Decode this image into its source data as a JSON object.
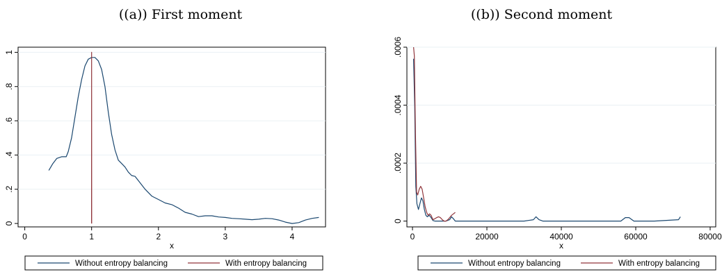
{
  "chart_data": [
    {
      "type": "line",
      "caption": "((a)) First moment",
      "xlabel": "x",
      "ylabel": "",
      "xlim": [
        -0.1,
        4.5
      ],
      "ylim": [
        -0.02,
        1.03
      ],
      "xticks": [
        0,
        1,
        2,
        3,
        4
      ],
      "xtick_labels": [
        "0",
        "1",
        "2",
        "3",
        "4"
      ],
      "yticks": [
        0,
        0.2,
        0.4,
        0.6,
        0.8,
        1
      ],
      "ytick_labels": [
        "0",
        ".2",
        ".4",
        ".6",
        ".8",
        "1"
      ],
      "grid": "horizontal",
      "legend_position": "bottom",
      "series": [
        {
          "name": "Without entropy balancing",
          "color": "#1a476f",
          "x": [
            0.36,
            0.42,
            0.48,
            0.55,
            0.62,
            0.65,
            0.7,
            0.75,
            0.8,
            0.85,
            0.9,
            0.95,
            1.0,
            1.05,
            1.1,
            1.15,
            1.2,
            1.25,
            1.3,
            1.35,
            1.4,
            1.45,
            1.5,
            1.55,
            1.6,
            1.65,
            1.7,
            1.8,
            1.9,
            2.0,
            2.1,
            2.2,
            2.3,
            2.4,
            2.5,
            2.6,
            2.7,
            2.8,
            2.9,
            3.0,
            3.1,
            3.2,
            3.3,
            3.4,
            3.5,
            3.6,
            3.7,
            3.8,
            3.9,
            4.0,
            4.1,
            4.2,
            4.3,
            4.4
          ],
          "y": [
            0.31,
            0.35,
            0.38,
            0.39,
            0.39,
            0.42,
            0.5,
            0.62,
            0.74,
            0.84,
            0.92,
            0.96,
            0.97,
            0.97,
            0.95,
            0.9,
            0.8,
            0.65,
            0.52,
            0.43,
            0.37,
            0.35,
            0.33,
            0.3,
            0.28,
            0.275,
            0.25,
            0.2,
            0.16,
            0.14,
            0.12,
            0.11,
            0.09,
            0.065,
            0.055,
            0.04,
            0.045,
            0.045,
            0.038,
            0.035,
            0.03,
            0.028,
            0.025,
            0.022,
            0.025,
            0.03,
            0.028,
            0.02,
            0.008,
            0.0,
            0.005,
            0.02,
            0.03,
            0.035
          ]
        },
        {
          "name": "With entropy balancing",
          "color": "#90353b",
          "x": [
            0.999,
            1.0,
            1.0,
            1.001
          ],
          "y": [
            0.0,
            1.0,
            1.0,
            0.0
          ]
        }
      ]
    },
    {
      "type": "line",
      "caption": "((b)) Second moment",
      "xlabel": "x",
      "ylabel": "",
      "xlim": [
        -1500,
        81500
      ],
      "ylim": [
        -2e-05,
        0.0006
      ],
      "xticks": [
        0,
        20000,
        40000,
        60000,
        80000
      ],
      "xtick_labels": [
        "0",
        "20000",
        "40000",
        "60000",
        "80000"
      ],
      "yticks": [
        0,
        0.0002,
        0.0004,
        0.0006
      ],
      "ytick_labels": [
        "0",
        ".0002",
        ".0004",
        ".0006"
      ],
      "grid": "horizontal",
      "legend_position": "bottom",
      "series": [
        {
          "name": "Without entropy balancing",
          "color": "#1a476f",
          "x": [
            300,
            600,
            900,
            1200,
            1600,
            2000,
            2400,
            2800,
            3200,
            3600,
            4000,
            4500,
            5000,
            5500,
            6000,
            7000,
            8000,
            9000,
            10000,
            10500,
            11000,
            11500,
            12000,
            20000,
            30000,
            32500,
            33200,
            34000,
            35000,
            45000,
            56000,
            57200,
            58200,
            59500,
            65000,
            71500,
            72000
          ],
          "y": [
            0.00056,
            0.0004,
            0.00012,
            6e-05,
            4e-05,
            6e-05,
            8e-05,
            7e-05,
            4e-05,
            2e-05,
            1.5e-05,
            2e-05,
            1.2e-05,
            2e-06,
            0.0,
            0.0,
            0.0,
            0.0,
            5e-06,
            1.5e-05,
            8e-06,
            0.0,
            0.0,
            0.0,
            0.0,
            5e-06,
            1.5e-05,
            5e-06,
            0.0,
            0.0,
            0.0,
            1.2e-05,
            1.2e-05,
            0.0,
            0.0,
            5e-06,
            1.5e-05
          ]
        },
        {
          "name": "With entropy balancing",
          "color": "#90353b",
          "x": [
            300,
            500,
            800,
            1100,
            1400,
            1800,
            2200,
            2600,
            3000,
            3400,
            3800,
            4200,
            4600,
            5000,
            5500,
            6000,
            6500,
            7000,
            7500,
            8000,
            8500,
            9000,
            9500,
            10000,
            10500,
            11000,
            11500
          ],
          "y": [
            0.0006,
            0.00057,
            0.0003,
            0.0001,
            9e-05,
            0.00011,
            0.00012,
            0.00011,
            8e-05,
            5e-05,
            3e-05,
            2e-05,
            2.5e-05,
            2e-05,
            5e-06,
            8e-06,
            1.2e-05,
            1.5e-05,
            1.2e-05,
            5e-06,
            0.0,
            0.0,
            5e-06,
            1.2e-05,
            2e-05,
            2.5e-05,
            3e-05
          ]
        }
      ]
    }
  ]
}
